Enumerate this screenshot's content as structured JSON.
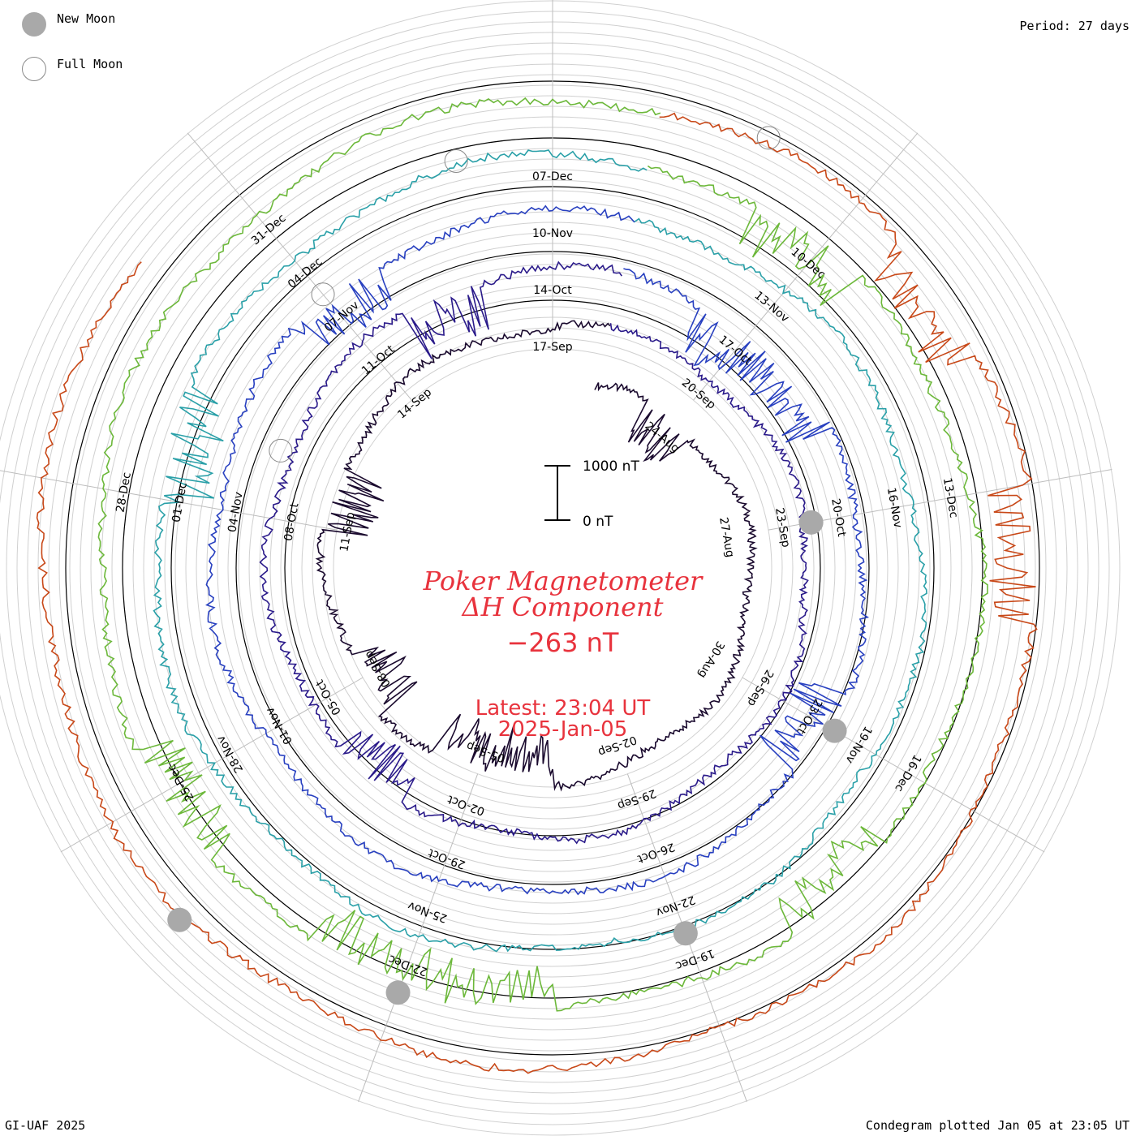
{
  "legend": {
    "new_moon": "New Moon",
    "full_moon": "Full Moon"
  },
  "period": "Period: 27 days",
  "footer": {
    "left": "GI-UAF 2025",
    "right": "Condegram plotted Jan 05 at 23:05 UT"
  },
  "center": {
    "title_line1": "Poker Magnetometer",
    "title_line2": "ΔH Component",
    "value": "−263 nT",
    "latest": "Latest: 23:04 UT",
    "date": "2025-Jan-05"
  },
  "scale_bar": {
    "top_label": "1000 nT",
    "bottom_label": "0 nT"
  },
  "chart_data": {
    "type": "line",
    "title": "Poker Magnetometer ΔH Component",
    "period_days": 27,
    "units": "nT",
    "current_value": -263,
    "colors": {
      "cycle1": "#1a0a2e",
      "cycle2": "#2a1a8a",
      "cycle3": "#2840c0",
      "cycle4": "#2aa0a8",
      "cycle5": "#6cb83a",
      "cycle6": "#a8b818",
      "cycle7": "#c84818",
      "accent": "#e8333d",
      "moon_fill": "#a9a9a9"
    },
    "series": [
      {
        "start": "2024-08-27",
        "labels": [
          "24-Aug",
          "27-Aug",
          "30-Aug",
          "02-Sep",
          "05-Sep",
          "08-Sep",
          "11-Sep",
          "14-Sep",
          "17-Sep"
        ]
      },
      {
        "start": "2024-09-23",
        "labels": [
          "20-Sep",
          "23-Sep",
          "26-Sep",
          "29-Sep",
          "02-Oct",
          "05-Oct",
          "08-Oct",
          "11-Oct",
          "14-Oct"
        ]
      },
      {
        "start": "2024-10-20",
        "labels": [
          "17-Oct",
          "20-Oct",
          "23-Oct",
          "26-Oct",
          "29-Oct",
          "01-Nov",
          "04-Nov",
          "07-Nov",
          "10-Nov"
        ]
      },
      {
        "start": "2024-11-16",
        "labels": [
          "13-Nov",
          "16-Nov",
          "19-Nov",
          "22-Nov",
          "25-Nov",
          "28-Nov",
          "01-Dec",
          "04-Dec",
          "07-Dec"
        ]
      },
      {
        "start": "2024-12-13",
        "labels": [
          "10-Dec",
          "13-Dec",
          "16-Dec",
          "19-Dec",
          "22-Dec",
          "25-Dec",
          "28-Dec",
          "31-Dec"
        ]
      }
    ],
    "moons": {
      "new": [
        "2024-09-02",
        "2024-10-02",
        "2024-11-01",
        "2024-12-01",
        "2024-12-30"
      ],
      "full": [
        "2024-09-18",
        "2024-10-17",
        "2024-11-15",
        "2024-12-15"
      ]
    },
    "scale": {
      "bar_top": 1000,
      "bar_bottom": 0
    }
  }
}
